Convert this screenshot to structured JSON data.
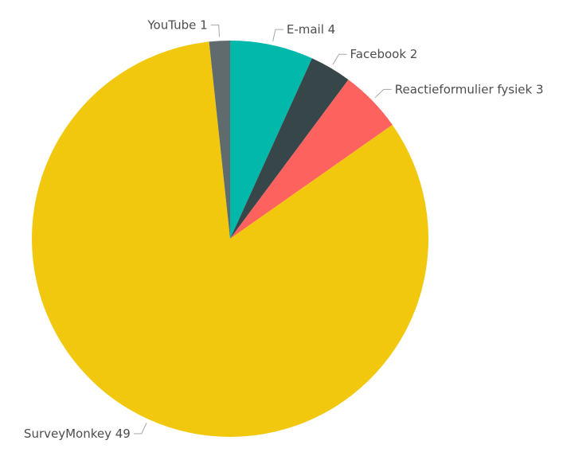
{
  "chart_data": {
    "type": "pie",
    "title": "",
    "slices": [
      {
        "label": "E-mail",
        "value": 4,
        "color": "#01b8aa"
      },
      {
        "label": "Facebook",
        "value": 2,
        "color": "#374649"
      },
      {
        "label": "Reactieformulier fysiek",
        "value": 3,
        "color": "#fd625e"
      },
      {
        "label": "SurveyMonkey",
        "value": 49,
        "color": "#f2c80f"
      },
      {
        "label": "YouTube",
        "value": 1,
        "color": "#5f6b6d"
      }
    ],
    "start_angle_deg": 0,
    "direction": "clockwise",
    "data_labels": "category-and-value",
    "legend": "none"
  }
}
